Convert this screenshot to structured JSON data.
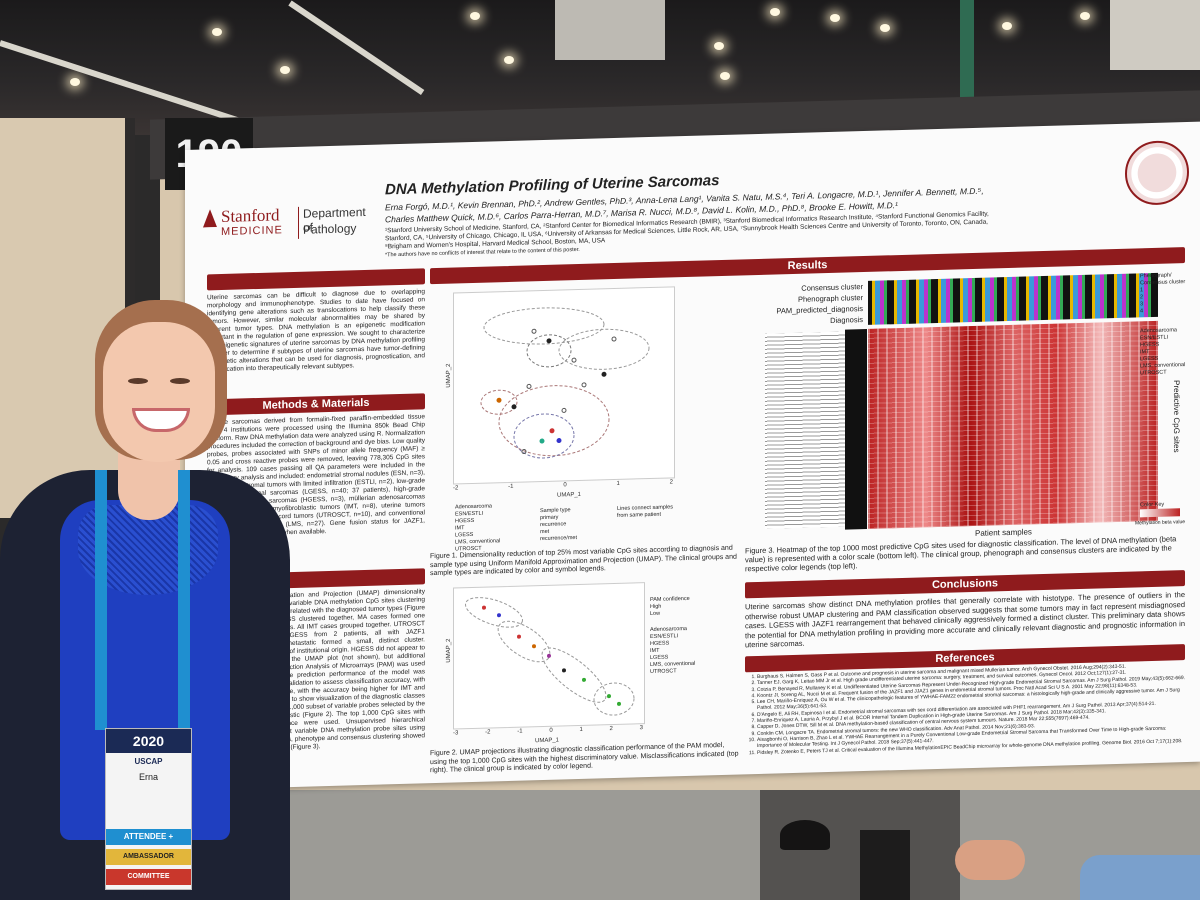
{
  "booth_number": "190",
  "poster": {
    "logo_line1": "Stanford",
    "logo_line2": "MEDICINE",
    "dept_line1": "Department of",
    "dept_line2": "Pathology",
    "title": "DNA Methylation Profiling of Uterine Sarcomas",
    "authors_line1": "Erna Forgó, M.D.¹, Kevin Brennan, PhD.², Andrew Gentles, PhD.³, Anna-Lena Lang¹, Vanita S. Natu, M.S.⁴, Teri A. Longacre, M.D.¹, Jennifer A. Bennett, M.D.⁵,",
    "authors_line2": "Charles Matthew Quick, M.D.⁶, Carlos Parra-Herran, M.D.⁷, Marisa R. Nucci, M.D.⁸, David L. Kolin, M.D., PhD.⁸, Brooke E. Howitt, M.D.¹",
    "affiliations_line1": "¹Stanford University School of Medicine, Stanford, CA, ²Stanford Center for Biomedical Informatics Research (BMIR), ³Stanford Biomedical Informatics Research Institute, ⁴Stanford Functional Genomics Facility,",
    "affiliations_line2": "Stanford, CA, ⁵University of Chicago, Chicago, IL USA, ⁶University of Arkansas for Medical Sciences, Little Rock, AR, USA, ⁷Sunnybrook Health Sciences Centre and University of Toronto, Toronto, ON, Canada,",
    "affiliations_line3": "⁸Brigham and Women's Hospital, Harvard Medical School, Boston, MA, USA",
    "disclaimer": "*The authors have no conflicts of interest that relate to the content of this poster.",
    "sections": {
      "results": "Results",
      "methods": "Methods & Materials",
      "conclusions": "Conclusions",
      "references": "References"
    },
    "intro_text": "Uterine sarcomas can be difficult to diagnose due to overlapping morphology and immunophenotype. Studies to date have focused on identifying gene alterations such as translocations to help classify these tumors. However, similar molecular abnormalities may be shared by different tumor types. DNA methylation is an epigenetic modification important in the regulation of gene expression. We sought to characterize the epigenetic signatures of uterine sarcomas by DNA methylation profiling in order to determine if subtypes of uterine sarcomas have tumor-defining epigenetic alterations that can be used for diagnosis, prognostication, and classification into therapeutically relevant subtypes.",
    "methods_text": "Uterine sarcomas derived from formalin-fixed paraffin-embedded tissue from 4 institutions were processed using the Illumina 850k Bead Chip Platform. Raw DNA methylation data were analyzed using R. Normalization procedures included the correction of background and dye bias. Low quality probes, probes associated with SNPs of minor allele frequency (MAF) ≥ 0.05 and cross reactive probes were removed, leaving 778,305 CpG sites for analysis. 109 cases passing all QA parameters were included in the preliminary analysis and included: endometrial stromal nodules (ESN, n=3), endometrial stromal tumors with limited infiltration (ESTLI, n=2), low-grade endometrial stromal sarcomas (LGESS, n=40; 37 patients), high-grade endometrial stromal sarcomas (HGESS, n=3), müllerian adenosarcomas (n=16), inflammatory myofibroblastic tumors (IMT, n=8), uterine tumors resembling ovarian sex cord tumors (UTROSCT, n=10), and conventional uterine leiomyosarcomas (LMS, n=27). Gene fusion status for JAZF1, PHF1, was also recorded when available.",
    "umap_text": "Uniform Manifold Approximation and Projection (UMAP) dimensionality reduction on the 25% most variable DNA methylation CpG sites clustering into 5 main groups which correlated with the diagnosed tumor types (Figure 1). ESN, ESTLI, and LGESS clustered together, MA cases formed one group, and most LMS tumors. All IMT cases grouped together. UTROSCT tumors. Additionally, 5 LGESS from 2 patients, all with JAZF1 rearrangements and all metastatic formed a small, distinct cluster. Clustering was independent of institutional origin. HGESS did not appear to form subgroups based on the UMAP plot (not shown), but additional analyses are ongoing. Prediction Analysis of Microarrays (PAM) was used to train a classifier and the prediction performance of the model was evaluated by 10-fold cross validation to assess classification accuracy, with the model was 69% accurate, with the accuracy being higher for IMT and UTROSCT. UMAP was used to show visualization of the diagnostic classes (as in Figure 1) and the top 1,000 subset of variable probes selected by the PAM model as most diagnostic (Figure 2). The top 1,000 CpG sites with highest methylation variance were used. Unsupervised hierarchical clustering of the 1,000 most variable DNA methylation probe sites using multiple clustering algorithms, phenotype and consensus clustering showed distinct diagnostic groupings (Figure 3).",
    "fig1_caption": "Figure 1. Dimensionality reduction of top 25% most variable CpG sites according to diagnosis and sample type using Uniform Manifold Approximation and Projection (UMAP). The clinical groups and sample types are indicated by color and symbol legends.",
    "fig2_caption": "Figure 2. UMAP projections illustrating diagnostic classification performance of the PAM model, using the top 1,000 CpG sites with the highest discriminatory value. Misclassifications indicated (top right). The clinical group is indicated by color legend.",
    "fig3_caption": "Figure 3. Heatmap of the top 1000 most predictive CpG sites used for diagnostic classification. The level of DNA methylation (beta value) is represented with a color scale (bottom left). The clinical group, phenograph and consensus clusters are indicated by the respective color legends (top left).",
    "fig1_axis_y": "UMAP_2",
    "fig1_axis_x": "UMAP_1",
    "fig1_xticks": [
      "-2",
      "-1",
      "0",
      "1",
      "2"
    ],
    "fig1_legend_sample_title": "Sample type",
    "fig1_legend_sample": [
      "primary",
      "recurrence",
      "met",
      "recurrence/met"
    ],
    "fig1_legend_lines": "Lines connect samples from same patient",
    "diagnosis_legend": [
      "Adenosarcoma",
      "ESN/ESTLI",
      "HGESS",
      "IMT",
      "LGESS",
      "LMS, conventional",
      "UTROSCT"
    ],
    "fig2_legend_title": "PAM confidence",
    "fig2_legend": [
      "High",
      "Low"
    ],
    "fig2_axis_y": "UMAP_2",
    "fig2_axis_x": "UMAP_1",
    "fig2_xticks": [
      "-3",
      "-2",
      "-1",
      "0",
      "1",
      "2",
      "3"
    ],
    "heatmap_rows": [
      "Consensus cluster",
      "Phenograph cluster",
      "PAM_predicted_diagnosis",
      "Diagnosis"
    ],
    "heatmap_xlabel": "Patient samples",
    "heatmap_ylabel": "Predictive CpG sites",
    "heatmap_key_title": "Color Key",
    "heatmap_key_label": "Methylation beta value",
    "pheno_legend_title": "Phenograph/ Consensus cluster",
    "pheno_legend": [
      "1",
      "2",
      "3",
      "4"
    ],
    "conclusions_text": "Uterine sarcomas show distinct DNA methylation profiles that generally correlate with histotype. The presence of outliers in the otherwise robust UMAP clustering and PAM classification observed suggests that some tumors may in fact represent misdiagnosed cases. LGESS with JAZF1 rearrangement that behaved clinically aggressively formed a distinct cluster. This preliminary data shows the potential for DNA methylation profiling in providing more accurate and clinically relevant diagnostic and prognostic information in uterine sarcomas.",
    "references": [
      "Burghaus S, Halmen S, Gass P et al. Outcome and prognosis in uterine sarcoma and malignant mixed Mullerian tumor. Arch Gynecol Obstet. 2016 Aug;294(2):343-51.",
      "Tanner EJ, Garg K, Leitao MM Jr et al. High grade undifferentiated uterine sarcoma: surgery, treatment, and survival outcomes. Gynecol Oncol. 2012 Oct;127(1):27-31.",
      "Cotzia P, Benayed R, Mullaney K et al. Undifferentiated Uterine Sarcomas Represent Under-Recognized High-grade Endometrial Stromal Sarcomas. Am J Surg Pathol. 2019 May;43(5):662-669.",
      "Koontz JI, Soreng AL, Nucci M et al. Frequent fusion of the JAZF1 and JJAZ1 genes in endometrial stromal tumors. Proc Natl Acad Sci U S A. 2001 May 22;98(11):6348-53.",
      "Lee CH, Mariño-Enriquez A, Ou W et al. The clinicopathologic features of YWHAE-FAM22 endometrial stromal sarcomas: a histologically high-grade and clinically aggressive tumor. Am J Surg Pathol. 2012 May;36(5):641-53.",
      "D'Angelo E, Ali RH, Espinosa I et al. Endometrial stromal sarcomas with sex cord differentiation are associated with PHF1 rearrangement. Am J Surg Pathol. 2013 Apr;37(4):514-21.",
      "Mariño-Enriquez A, Lauria A, Przybyl J et al. BCOR Internal Tandem Duplication in High-grade Uterine Sarcomas. Am J Surg Pathol. 2018 Mar;42(3):335-341.",
      "Capper D, Jones DTW, Sill M et al. DNA methylation-based classification of central nervous system tumours. Nature. 2018 Mar 22;555(7697):469-474.",
      "Conklin CM, Longacre TA. Endometrial stromal tumors: the new WHO classification. Adv Anat Pathol. 2014 Nov;21(6):383-93.",
      "Aisagbonhi O, Harrison B, Zhao L et al. YWHAE Rearrangement in a Purely Conventional Low-grade Endometrial Stromal Sarcoma that Transformed Over Time to High-grade Sarcoma: Importance of Molecular Testing. Int J Gynecol Pathol. 2018 Sep;37(5):441-447.",
      "Pidsley R, Zotenko E, Peters TJ et al. Critical evaluation of the Illumina MethylationEPIC BeadChip microarray for whole-genome DNA methylation profiling. Genome Biol. 2016 Oct 7;17(1):208."
    ]
  },
  "badge": {
    "name": "Erna",
    "year": "2020",
    "org": "USCAP",
    "attendee": "ATTENDEE +",
    "ambassador": "AMBASSADOR",
    "committee": "COMMITTEE"
  },
  "colors": {
    "poster_red": "#8f1b1d",
    "lanyard_blue": "#1f8fd0",
    "blouse_blue": "#1f3fc0",
    "cardigan": "#1d2233"
  }
}
